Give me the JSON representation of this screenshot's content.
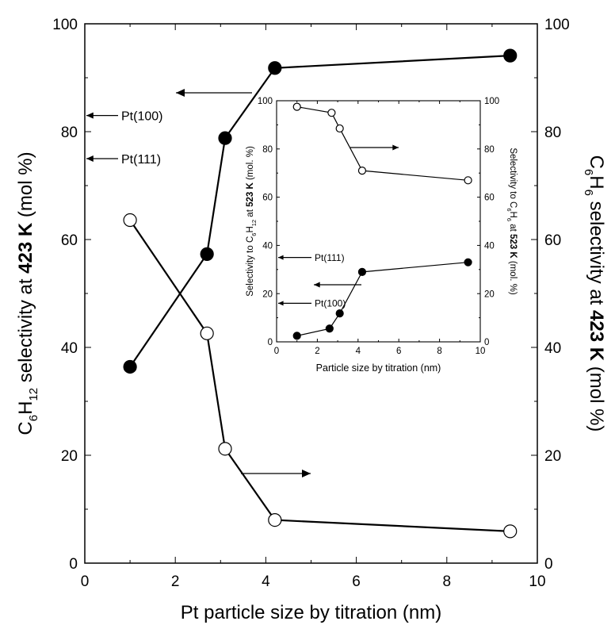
{
  "chart_data": [
    {
      "type": "line",
      "xlabel": "Pt particle size by titration (nm)",
      "ylabel_left": {
        "prefix": "C",
        "s1": "6",
        "mid": "H",
        "s2": "12",
        "pre": " selectivity at ",
        "bold": "423 K",
        "post": " (mol %)"
      },
      "ylabel_right": {
        "prefix": "C",
        "s1": "6",
        "mid": "H",
        "s2": "6",
        "pre": " selectivity at ",
        "bold": "423 K",
        "post": " (mol %)"
      },
      "xlim": [
        0,
        10
      ],
      "ylim": [
        0,
        100
      ],
      "xticks": [
        0,
        2,
        4,
        6,
        8,
        10
      ],
      "yticks": [
        0,
        20,
        40,
        60,
        80,
        100
      ],
      "series": [
        {
          "marker": "filled",
          "axis": "left",
          "x": [
            1.0,
            2.7,
            3.1,
            4.2,
            9.4
          ],
          "y": [
            36.4,
            57.3,
            78.8,
            91.8,
            94.1
          ]
        },
        {
          "marker": "open",
          "axis": "right",
          "x": [
            1.0,
            2.7,
            3.1,
            4.2,
            9.4
          ],
          "y": [
            63.6,
            42.6,
            21.2,
            8.0,
            5.9
          ]
        }
      ],
      "annotations": [
        {
          "text": "Pt(100)",
          "y": 83
        },
        {
          "text": "Pt(111)",
          "y": 75
        }
      ]
    },
    {
      "type": "line",
      "xlabel": "Particle size by titration (nm)",
      "ylabel_left": {
        "pre": "Selectivity to C",
        "s1": "6",
        "mid": "H",
        "s2": "12",
        "at": " at ",
        "bold": "523 K",
        "post": " (mol. %)"
      },
      "ylabel_right": {
        "pre": "Selectivity to C",
        "s1": "6",
        "mid": "H",
        "s2": "6",
        "at": " at ",
        "bold": "523 K",
        "post": " (mol. %)"
      },
      "xlim": [
        0,
        10
      ],
      "ylim": [
        0,
        100
      ],
      "xticks": [
        0,
        2,
        4,
        6,
        8,
        10
      ],
      "yticks": [
        0,
        20,
        40,
        60,
        80,
        100
      ],
      "series": [
        {
          "marker": "open",
          "axis": "right",
          "x": [
            1.0,
            2.7,
            3.1,
            4.2,
            9.4
          ],
          "y": [
            97.5,
            95.0,
            88.5,
            71.0,
            67.0
          ]
        },
        {
          "marker": "filled",
          "axis": "left",
          "x": [
            1.0,
            2.6,
            3.1,
            4.2,
            9.4
          ],
          "y": [
            2.5,
            5.5,
            11.8,
            29.0,
            33.0
          ]
        }
      ],
      "annotations": [
        {
          "text": "Pt(111)",
          "y": 35
        },
        {
          "text": "Pt(100)",
          "y": 16
        }
      ]
    }
  ]
}
